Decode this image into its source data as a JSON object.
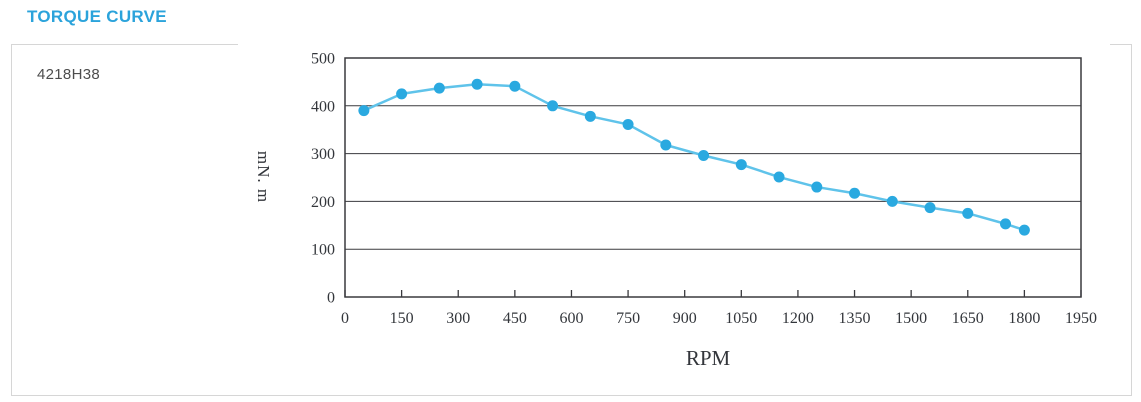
{
  "page": {
    "title": "TORQUE CURVE",
    "title_color": "#2BA3DB",
    "model": "4218H38"
  },
  "chart_data": {
    "type": "line",
    "title": "",
    "xlabel": "RPM",
    "ylabel": "mN. m",
    "xlim": [
      0,
      1950
    ],
    "ylim": [
      0,
      500
    ],
    "x_ticks": [
      0,
      150,
      300,
      450,
      600,
      750,
      900,
      1050,
      1200,
      1350,
      1500,
      1650,
      1800,
      1950
    ],
    "y_ticks": [
      0,
      100,
      200,
      300,
      400,
      500
    ],
    "grid": "horizontal-only",
    "legend": "none",
    "axis_color": "#3a3a3e",
    "series": [
      {
        "name": "torque-vs-rpm",
        "x": [
          50,
          150,
          250,
          350,
          450,
          550,
          650,
          750,
          850,
          950,
          1050,
          1150,
          1250,
          1350,
          1450,
          1550,
          1650,
          1750,
          1800
        ],
        "y": [
          390,
          425,
          437,
          445,
          441,
          400,
          378,
          361,
          318,
          296,
          277,
          251,
          230,
          217,
          200,
          187,
          175,
          153,
          140
        ],
        "line_color": "#5fc3ea",
        "marker_color": "#2aa9e0"
      }
    ]
  }
}
